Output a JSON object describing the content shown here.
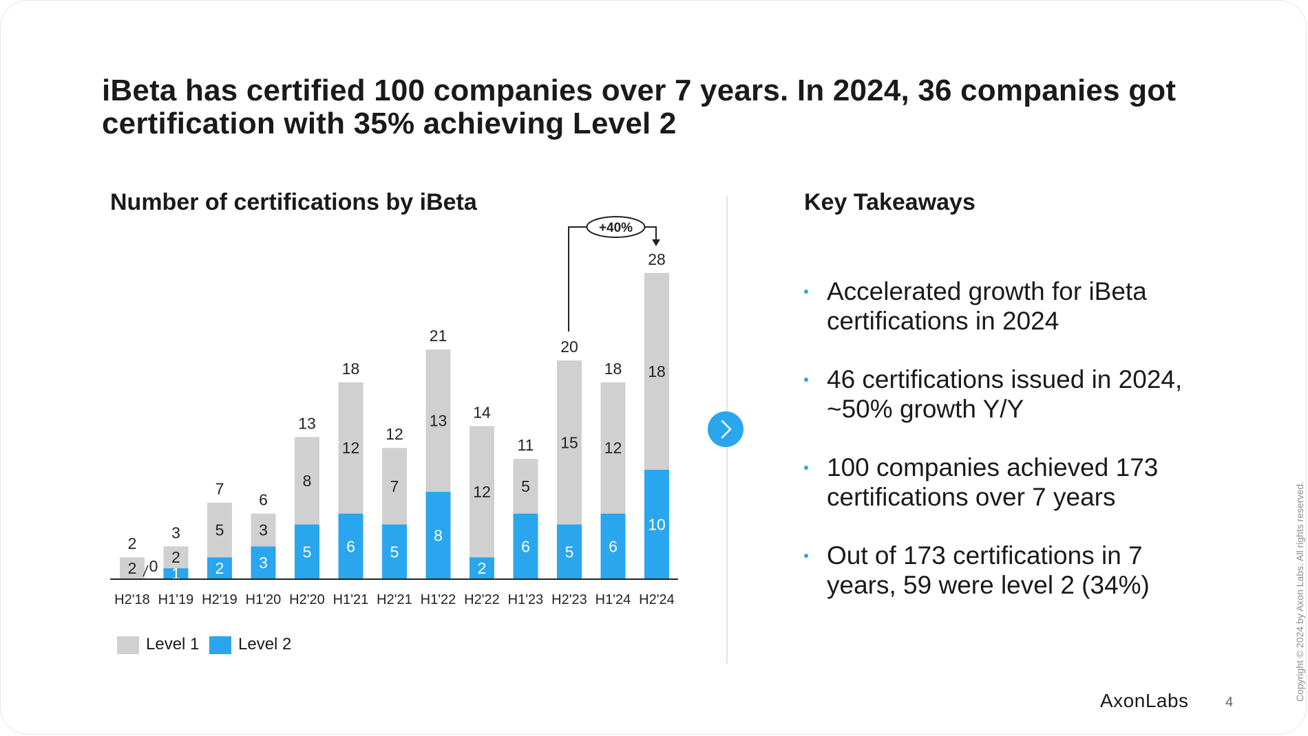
{
  "title": "iBeta has certified 100 companies over 7 years. In 2024, 36 companies got certification with 35% achieving Level 2",
  "chart_panel": {
    "heading": "Number of certifications by iBeta"
  },
  "takeaways": {
    "heading": "Key Takeaways",
    "items": [
      "Accelerated growth for iBeta certifications in 2024",
      "46 certifications issued in 2024, ~50% growth Y/Y",
      "100 companies achieved 173 certifications over 7 years",
      "Out of 173 certifications in 7 years, 59 were level 2 (34%)"
    ]
  },
  "brand": "AxonLabs",
  "page_number": "4",
  "copyright": "Copyright © 2024 by Axon Labs. All rights reserved.",
  "colors": {
    "level1": "#d0d0d0",
    "level2": "#2aa6ee",
    "accent": "#2aa6ee"
  },
  "chart_data": {
    "type": "bar",
    "stacked": true,
    "categories": [
      "H2'18",
      "H1'19",
      "H2'19",
      "H1'20",
      "H2'20",
      "H1'21",
      "H2'21",
      "H1'22",
      "H2'22",
      "H1'23",
      "H2'23",
      "H1'24",
      "H2'24"
    ],
    "series": [
      {
        "name": "Level 1",
        "values": [
          2,
          2,
          5,
          3,
          8,
          12,
          7,
          13,
          12,
          5,
          15,
          12,
          18
        ]
      },
      {
        "name": "Level 2",
        "values": [
          0,
          1,
          2,
          3,
          5,
          6,
          5,
          8,
          2,
          6,
          5,
          6,
          10
        ]
      }
    ],
    "totals": [
      2,
      3,
      7,
      6,
      13,
      18,
      12,
      21,
      14,
      11,
      20,
      18,
      28
    ],
    "annotation": {
      "label": "+40%",
      "from": "H2'23",
      "to": "H2'24"
    },
    "legend_position": "bottom-left",
    "grid": false
  }
}
